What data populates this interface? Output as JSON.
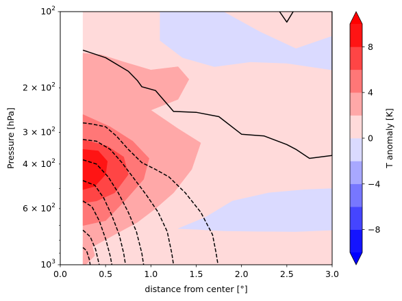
{
  "chart_data": {
    "type": "filled-contour",
    "xlabel": "distance from center [°]",
    "ylabel": "Pressure [hPa]",
    "colorbar_label": "T anomaly [K]",
    "xlim": [
      0.0,
      3.0
    ],
    "ylim": [
      1000,
      100
    ],
    "y_scale": "log",
    "x_ticks": [
      {
        "value": 0.0,
        "label": "0.0"
      },
      {
        "value": 0.5,
        "label": "0.5"
      },
      {
        "value": 1.0,
        "label": "1.0"
      },
      {
        "value": 1.5,
        "label": "1.5"
      },
      {
        "value": 2.0,
        "label": "2.0"
      },
      {
        "value": 2.5,
        "label": "2.5"
      },
      {
        "value": 3.0,
        "label": "3.0"
      }
    ],
    "y_ticks": [
      {
        "value": 100,
        "base": "10",
        "exp": "2",
        "mult": ""
      },
      {
        "value": 200,
        "base": "10",
        "exp": "2",
        "mult": "2 × "
      },
      {
        "value": 300,
        "base": "10",
        "exp": "2",
        "mult": "3 × "
      },
      {
        "value": 400,
        "base": "10",
        "exp": "2",
        "mult": "4 × "
      },
      {
        "value": 600,
        "base": "10",
        "exp": "2",
        "mult": "6 × "
      },
      {
        "value": 1000,
        "base": "10",
        "exp": "3",
        "mult": ""
      }
    ],
    "colorbar_ticks": [
      {
        "value": -8,
        "label": "−8"
      },
      {
        "value": -4,
        "label": "−4"
      },
      {
        "value": 0,
        "label": "0"
      },
      {
        "value": 4,
        "label": "4"
      },
      {
        "value": 8,
        "label": "8"
      }
    ],
    "levels": [
      -10,
      -8,
      -6,
      -4,
      -2,
      0,
      2,
      4,
      6,
      8,
      10
    ],
    "colormap": "bwr",
    "level_colors": [
      "#1414ff",
      "#4545ff",
      "#7777ff",
      "#a8a8ff",
      "#dadaff",
      "#ffdada",
      "#ffa8a8",
      "#ff7777",
      "#ff4545",
      "#ff1414"
    ],
    "extend_colors": {
      "below": "#0000ff",
      "above": "#ff0000"
    },
    "regions": [
      {
        "level": [
          0,
          2
        ],
        "points": [
          [
            0.25,
            100
          ],
          [
            3.0,
            100
          ],
          [
            3.0,
            1000
          ],
          [
            0.25,
            1000
          ]
        ]
      },
      {
        "level": [
          -2,
          0
        ],
        "points": [
          [
            1.1,
            100
          ],
          [
            1.8,
            100
          ],
          [
            2.2,
            120
          ],
          [
            2.6,
            140
          ],
          [
            3.0,
            125
          ],
          [
            3.0,
            170
          ],
          [
            2.5,
            160
          ],
          [
            2.1,
            158
          ],
          [
            1.7,
            165
          ],
          [
            1.35,
            152
          ],
          [
            1.1,
            130
          ]
        ]
      },
      {
        "level": [
          -2,
          0
        ],
        "points": [
          [
            1.3,
            720
          ],
          [
            1.6,
            650
          ],
          [
            1.9,
            560
          ],
          [
            2.3,
            520
          ],
          [
            2.7,
            505
          ],
          [
            3.0,
            500
          ],
          [
            3.0,
            730
          ],
          [
            2.6,
            740
          ],
          [
            2.2,
            738
          ],
          [
            1.8,
            735
          ],
          [
            1.5,
            725
          ]
        ]
      },
      {
        "level": [
          2,
          4
        ],
        "points": [
          [
            0.25,
            146
          ],
          [
            0.45,
            148
          ],
          [
            0.7,
            158
          ],
          [
            1.0,
            170
          ],
          [
            1.3,
            165
          ],
          [
            1.42,
            185
          ],
          [
            1.3,
            222
          ],
          [
            1.0,
            245
          ],
          [
            1.3,
            290
          ],
          [
            1.55,
            330
          ],
          [
            1.45,
            420
          ],
          [
            1.25,
            520
          ],
          [
            1.05,
            600
          ],
          [
            0.85,
            680
          ],
          [
            0.6,
            760
          ],
          [
            0.38,
            840
          ],
          [
            0.25,
            870
          ]
        ]
      },
      {
        "level": [
          4,
          6
        ],
        "points": [
          [
            0.25,
            255
          ],
          [
            0.55,
            285
          ],
          [
            0.8,
            325
          ],
          [
            0.98,
            380
          ],
          [
            0.92,
            460
          ],
          [
            0.72,
            555
          ],
          [
            0.5,
            670
          ],
          [
            0.25,
            700
          ]
        ]
      },
      {
        "level": [
          2,
          4
        ],
        "points": [
          [
            0.25,
            830
          ],
          [
            0.35,
            835
          ],
          [
            0.38,
            920
          ],
          [
            0.28,
            1000
          ],
          [
            0.25,
            1000
          ]
        ]
      },
      {
        "level": [
          6,
          8
        ],
        "points": [
          [
            0.25,
            320
          ],
          [
            0.52,
            340
          ],
          [
            0.7,
            375
          ],
          [
            0.75,
            440
          ],
          [
            0.6,
            520
          ],
          [
            0.4,
            560
          ],
          [
            0.25,
            570
          ]
        ]
      },
      {
        "level": [
          8,
          10
        ],
        "points": [
          [
            0.25,
            350
          ],
          [
            0.42,
            355
          ],
          [
            0.52,
            390
          ],
          [
            0.5,
            440
          ],
          [
            0.38,
            490
          ],
          [
            0.25,
            505
          ]
        ]
      }
    ],
    "contour_lines": [
      {
        "style": "solid",
        "points": [
          [
            0.25,
            142
          ],
          [
            0.5,
            152
          ],
          [
            0.75,
            172
          ],
          [
            0.85,
            187
          ],
          [
            0.9,
            198
          ],
          [
            1.05,
            205
          ],
          [
            1.25,
            248
          ],
          [
            1.5,
            250
          ],
          [
            1.75,
            260
          ],
          [
            2.0,
            305
          ],
          [
            2.25,
            310
          ],
          [
            2.5,
            335
          ],
          [
            2.6,
            350
          ],
          [
            2.75,
            380
          ],
          [
            3.0,
            370
          ],
          [
            3.0,
            100
          ]
        ]
      },
      {
        "style": "solid",
        "points": [
          [
            2.42,
            100
          ],
          [
            2.5,
            110
          ],
          [
            2.57,
            100
          ]
        ]
      },
      {
        "style": "dashed",
        "points": [
          [
            0.25,
            275
          ],
          [
            0.35,
            278
          ],
          [
            0.5,
            285
          ],
          [
            0.62,
            310
          ],
          [
            0.75,
            350
          ],
          [
            0.9,
            395
          ],
          [
            1.05,
            420
          ],
          [
            1.2,
            450
          ],
          [
            1.38,
            520
          ],
          [
            1.55,
            620
          ],
          [
            1.68,
            760
          ],
          [
            1.72,
            900
          ],
          [
            1.74,
            1000
          ]
        ]
      },
      {
        "style": "dashed",
        "points": [
          [
            0.25,
            320
          ],
          [
            0.4,
            325
          ],
          [
            0.55,
            350
          ],
          [
            0.68,
            395
          ],
          [
            0.8,
            450
          ],
          [
            0.95,
            530
          ],
          [
            1.08,
            620
          ],
          [
            1.18,
            740
          ],
          [
            1.23,
            900
          ],
          [
            1.25,
            1000
          ]
        ]
      },
      {
        "style": "dashed",
        "points": [
          [
            0.25,
            385
          ],
          [
            0.4,
            400
          ],
          [
            0.53,
            450
          ],
          [
            0.64,
            520
          ],
          [
            0.75,
            620
          ],
          [
            0.84,
            740
          ],
          [
            0.9,
            900
          ],
          [
            0.92,
            1000
          ]
        ]
      },
      {
        "style": "dashed",
        "points": [
          [
            0.25,
            465
          ],
          [
            0.38,
            485
          ],
          [
            0.48,
            545
          ],
          [
            0.57,
            640
          ],
          [
            0.65,
            760
          ],
          [
            0.7,
            900
          ],
          [
            0.72,
            1000
          ]
        ]
      },
      {
        "style": "dashed",
        "points": [
          [
            0.25,
            560
          ],
          [
            0.35,
            590
          ],
          [
            0.43,
            670
          ],
          [
            0.5,
            790
          ],
          [
            0.55,
            920
          ],
          [
            0.57,
            1000
          ]
        ]
      },
      {
        "style": "dashed",
        "points": [
          [
            0.25,
            730
          ],
          [
            0.33,
            775
          ],
          [
            0.39,
            870
          ],
          [
            0.43,
            1000
          ]
        ]
      },
      {
        "style": "dashed",
        "points": [
          [
            0.25,
            855
          ],
          [
            0.29,
            880
          ],
          [
            0.32,
            950
          ],
          [
            0.33,
            1000
          ]
        ]
      }
    ]
  }
}
